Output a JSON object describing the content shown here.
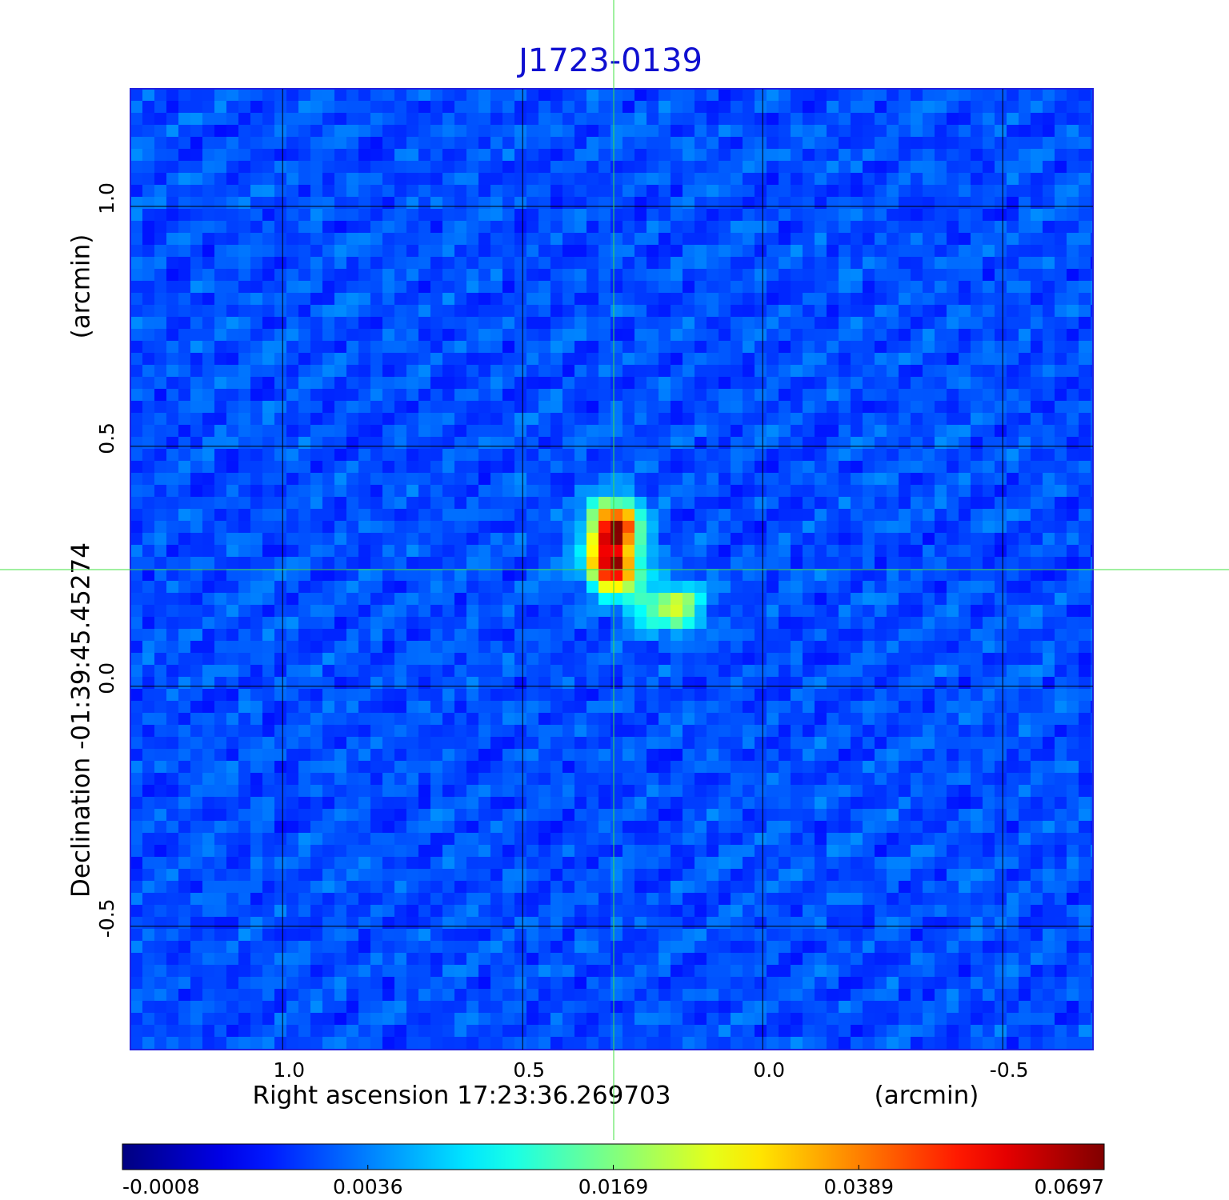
{
  "chart_data": {
    "type": "image",
    "title": "J1723-0139",
    "xlabel": "Right ascension  17:23:36.269703",
    "xunit": "(arcmin)",
    "ylabel": "Declination  -01:39:45.45274",
    "yunit": "(arcmin)",
    "xlim": [
      1.317,
      -0.688
    ],
    "ylim": [
      -0.757,
      1.245
    ],
    "xticks": [
      {
        "value": 1,
        "label": "1.0"
      },
      0.5,
      {
        "value": 0,
        "label": "0.0"
      },
      -0.5
    ],
    "yticks": [
      {
        "value": 1,
        "label": "1.0"
      },
      0.5,
      {
        "value": 0,
        "label": "0.0"
      },
      -0.5
    ],
    "grid": true,
    "grid_color": "#000000",
    "title_color": "#1010d0",
    "colorbar": {
      "colormap": "jet",
      "ticks": [
        -0.0008,
        0.0036,
        0.0169,
        0.0389,
        0.0697
      ]
    }
  }
}
